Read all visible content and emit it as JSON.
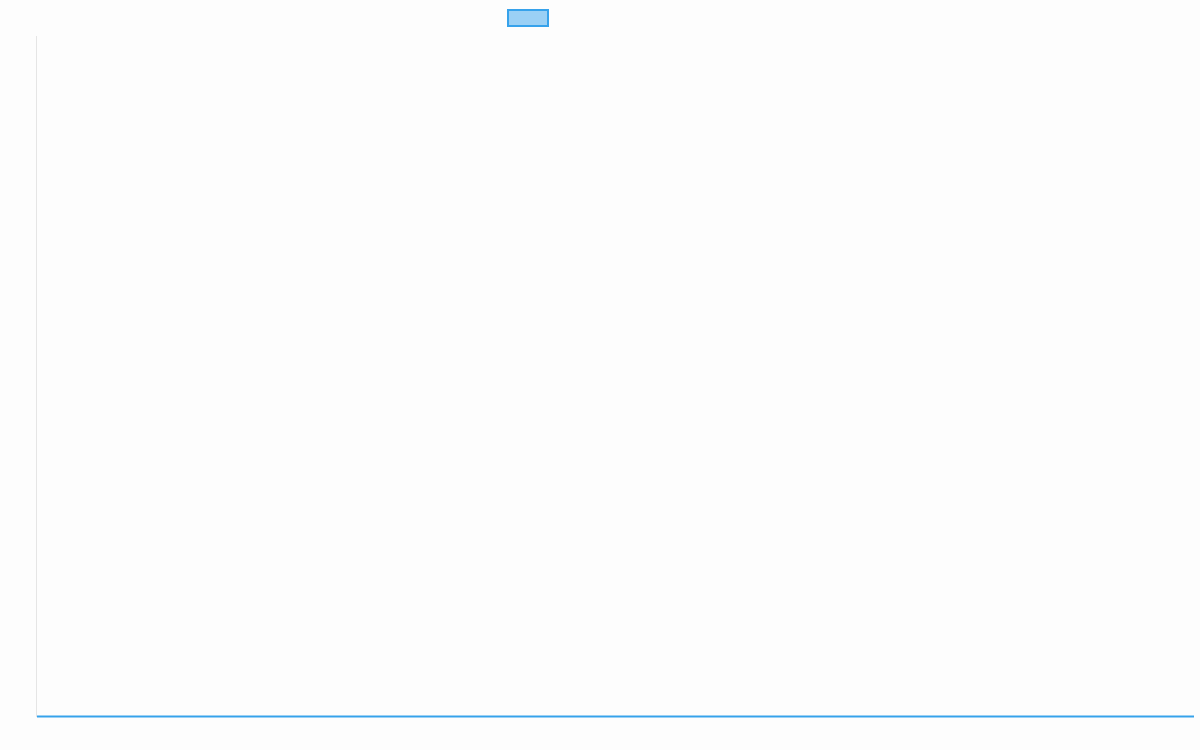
{
  "chart_data": {
    "type": "line",
    "title": "",
    "xlabel": "",
    "ylabel": "",
    "categories": [],
    "series": [
      {
        "color": "#36a2eb",
        "fill": "#9ad0f5",
        "values": []
      }
    ],
    "grid": false,
    "legend": "top-center"
  }
}
